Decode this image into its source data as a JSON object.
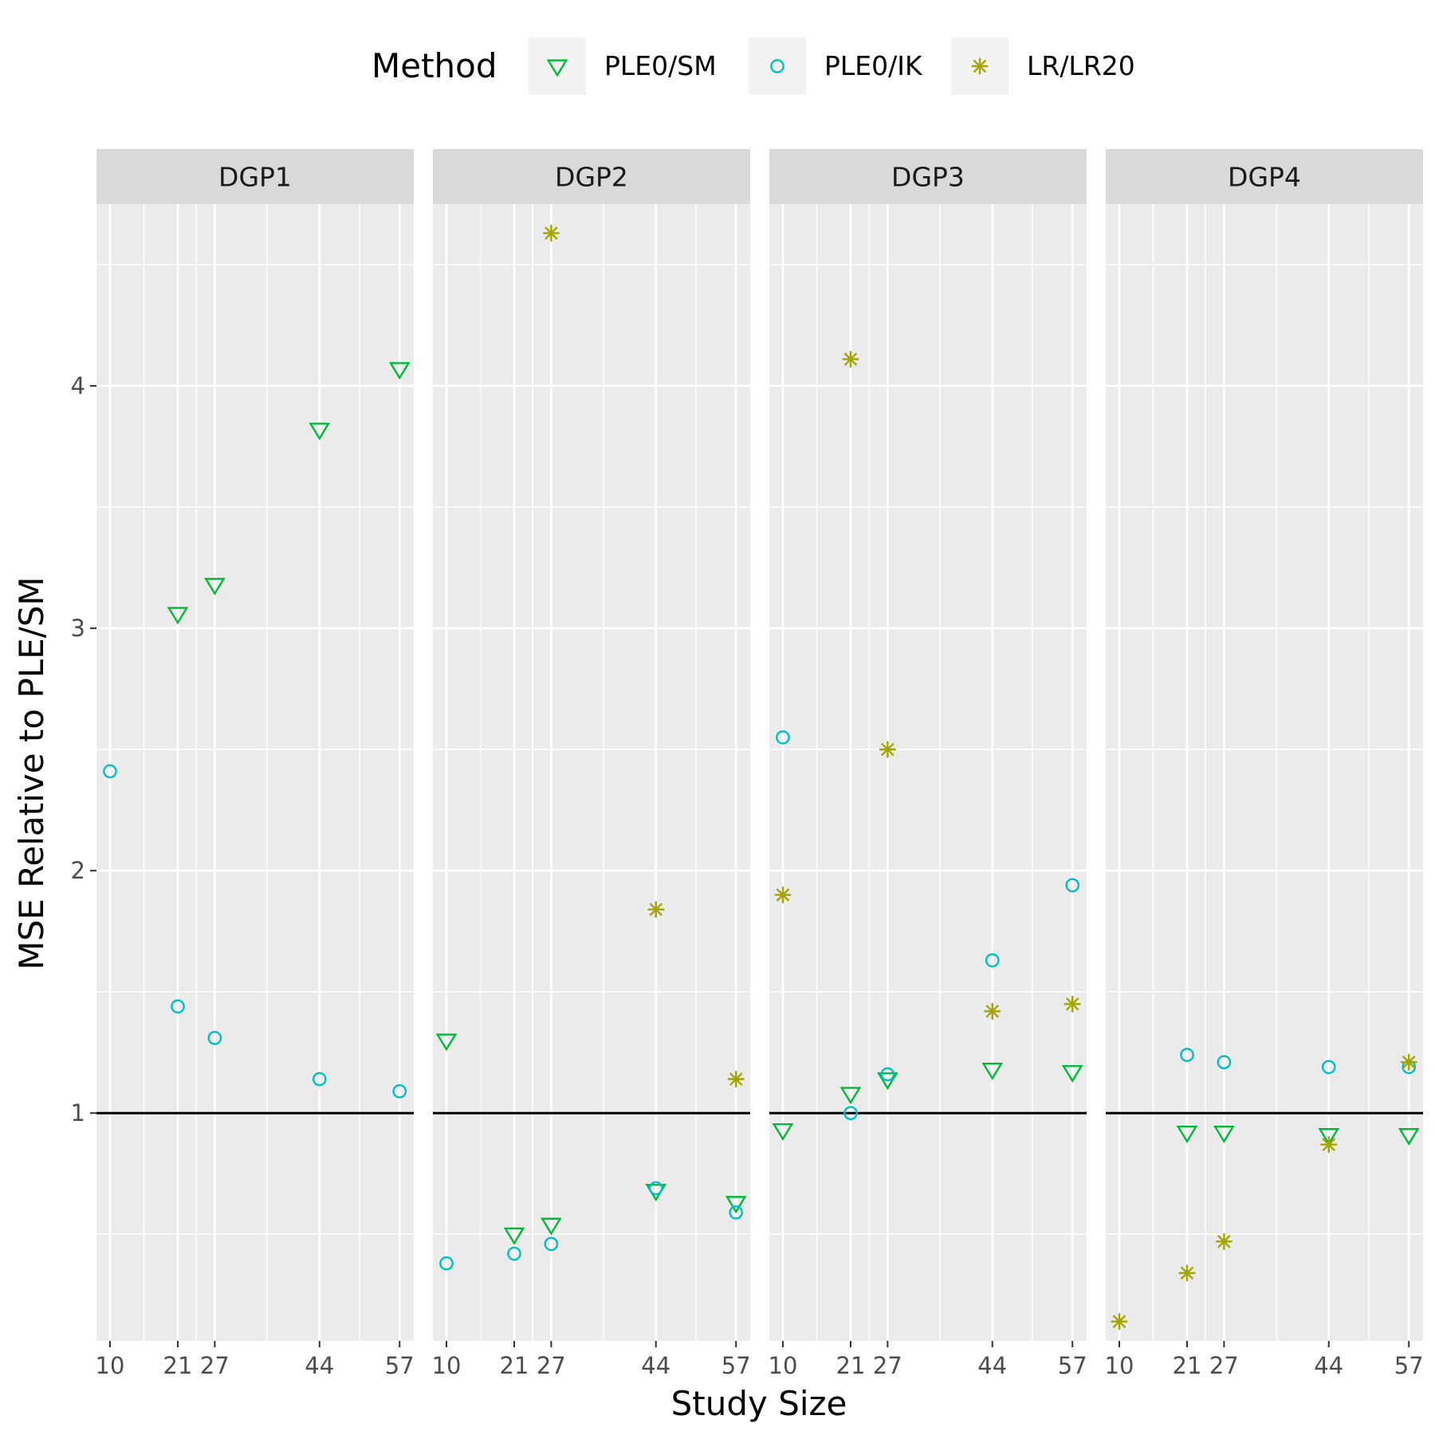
{
  "chart_data": {
    "type": "scatter",
    "facets": [
      "DGP1",
      "DGP2",
      "DGP3",
      "DGP4"
    ],
    "xlabel": "Study Size",
    "ylabel": "MSE Relative to PLE/SM",
    "x_ticks": [
      10,
      21,
      27,
      44,
      57
    ],
    "x_tick_labels": [
      "10",
      "21",
      "27",
      "44",
      "57"
    ],
    "xlim": [
      7.8,
      59.3
    ],
    "y_ticks": [
      1,
      2,
      3,
      4
    ],
    "y_tick_labels": [
      "1",
      "2",
      "3",
      "4"
    ],
    "ylim": [
      0.06,
      4.75
    ],
    "reference_line": 1,
    "legend": {
      "title": "Method",
      "position": "top",
      "entries": [
        {
          "key": "sm",
          "label": "PLE0/SM",
          "shape": "triangle-down",
          "color": "#00BA38"
        },
        {
          "key": "ik",
          "label": "PLE0/IK",
          "shape": "circle",
          "color": "#00BFC4"
        },
        {
          "key": "lr",
          "label": "LR/LR20",
          "shape": "asterisk",
          "color": "#A3A500"
        }
      ]
    },
    "series": [
      {
        "name": "PLE0/SM",
        "key": "sm",
        "points": [
          {
            "facet": "DGP1",
            "x": 21,
            "y": 3.06
          },
          {
            "facet": "DGP1",
            "x": 27,
            "y": 3.18
          },
          {
            "facet": "DGP1",
            "x": 44,
            "y": 3.82
          },
          {
            "facet": "DGP1",
            "x": 57,
            "y": 4.07
          },
          {
            "facet": "DGP2",
            "x": 10,
            "y": 1.3
          },
          {
            "facet": "DGP2",
            "x": 21,
            "y": 0.5
          },
          {
            "facet": "DGP2",
            "x": 27,
            "y": 0.54
          },
          {
            "facet": "DGP2",
            "x": 44,
            "y": 0.68
          },
          {
            "facet": "DGP2",
            "x": 57,
            "y": 0.63
          },
          {
            "facet": "DGP3",
            "x": 10,
            "y": 0.93
          },
          {
            "facet": "DGP3",
            "x": 21,
            "y": 1.08
          },
          {
            "facet": "DGP3",
            "x": 27,
            "y": 1.14
          },
          {
            "facet": "DGP3",
            "x": 44,
            "y": 1.18
          },
          {
            "facet": "DGP3",
            "x": 57,
            "y": 1.17
          },
          {
            "facet": "DGP4",
            "x": 21,
            "y": 0.92
          },
          {
            "facet": "DGP4",
            "x": 27,
            "y": 0.92
          },
          {
            "facet": "DGP4",
            "x": 44,
            "y": 0.91
          },
          {
            "facet": "DGP4",
            "x": 57,
            "y": 0.91
          }
        ]
      },
      {
        "name": "PLE0/IK",
        "key": "ik",
        "points": [
          {
            "facet": "DGP1",
            "x": 10,
            "y": 2.41
          },
          {
            "facet": "DGP1",
            "x": 21,
            "y": 1.44
          },
          {
            "facet": "DGP1",
            "x": 27,
            "y": 1.31
          },
          {
            "facet": "DGP1",
            "x": 44,
            "y": 1.14
          },
          {
            "facet": "DGP1",
            "x": 57,
            "y": 1.09
          },
          {
            "facet": "DGP2",
            "x": 10,
            "y": 0.38
          },
          {
            "facet": "DGP2",
            "x": 21,
            "y": 0.42
          },
          {
            "facet": "DGP2",
            "x": 27,
            "y": 0.46
          },
          {
            "facet": "DGP2",
            "x": 44,
            "y": 0.69
          },
          {
            "facet": "DGP2",
            "x": 57,
            "y": 0.59
          },
          {
            "facet": "DGP3",
            "x": 10,
            "y": 2.55
          },
          {
            "facet": "DGP3",
            "x": 21,
            "y": 1.0
          },
          {
            "facet": "DGP3",
            "x": 27,
            "y": 1.16
          },
          {
            "facet": "DGP3",
            "x": 44,
            "y": 1.63
          },
          {
            "facet": "DGP3",
            "x": 57,
            "y": 1.94
          },
          {
            "facet": "DGP4",
            "x": 21,
            "y": 1.24
          },
          {
            "facet": "DGP4",
            "x": 27,
            "y": 1.21
          },
          {
            "facet": "DGP4",
            "x": 44,
            "y": 1.19
          },
          {
            "facet": "DGP4",
            "x": 57,
            "y": 1.19
          }
        ]
      },
      {
        "name": "LR/LR20",
        "key": "lr",
        "points": [
          {
            "facet": "DGP2",
            "x": 27,
            "y": 4.63
          },
          {
            "facet": "DGP2",
            "x": 44,
            "y": 1.84
          },
          {
            "facet": "DGP2",
            "x": 57,
            "y": 1.14
          },
          {
            "facet": "DGP3",
            "x": 10,
            "y": 1.9
          },
          {
            "facet": "DGP3",
            "x": 21,
            "y": 4.11
          },
          {
            "facet": "DGP3",
            "x": 27,
            "y": 2.5
          },
          {
            "facet": "DGP3",
            "x": 44,
            "y": 1.42
          },
          {
            "facet": "DGP3",
            "x": 57,
            "y": 1.45
          },
          {
            "facet": "DGP4",
            "x": 10,
            "y": 0.14
          },
          {
            "facet": "DGP4",
            "x": 21,
            "y": 0.34
          },
          {
            "facet": "DGP4",
            "x": 27,
            "y": 0.47
          },
          {
            "facet": "DGP4",
            "x": 44,
            "y": 0.87
          },
          {
            "facet": "DGP4",
            "x": 57,
            "y": 1.21
          }
        ]
      }
    ]
  }
}
